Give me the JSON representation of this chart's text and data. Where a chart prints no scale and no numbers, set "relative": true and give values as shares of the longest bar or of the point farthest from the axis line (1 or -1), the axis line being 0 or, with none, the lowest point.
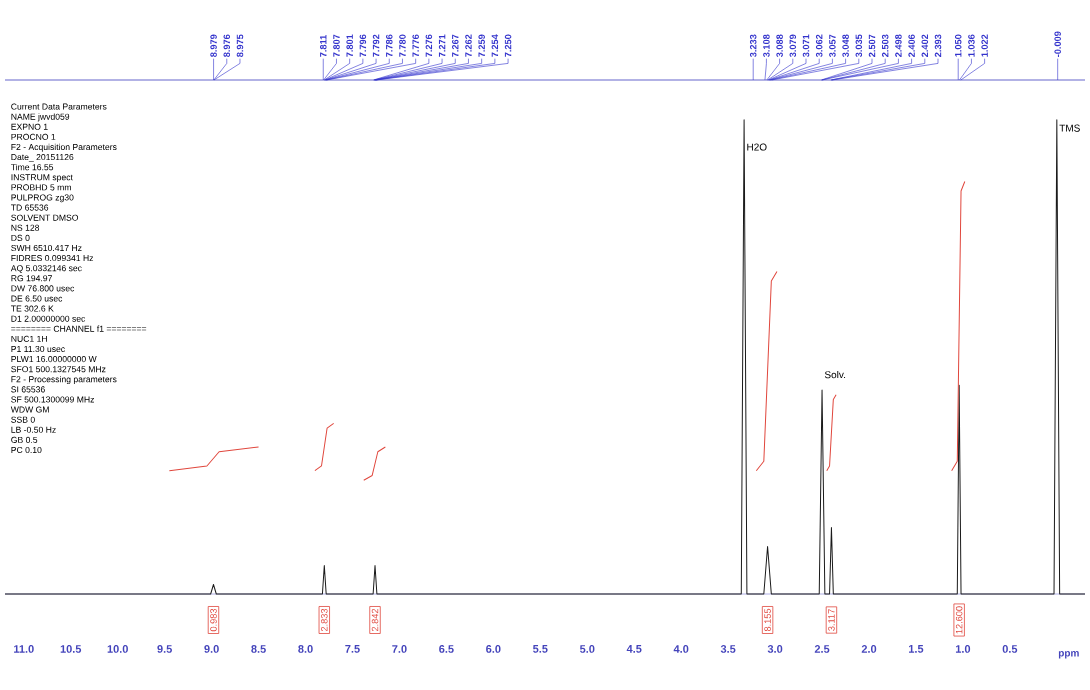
{
  "chart_data": {
    "type": "line",
    "relative": true,
    "xlabel": "ppm",
    "xlim": [
      11.2,
      -0.3
    ],
    "xticks": [
      {
        "value": 11,
        "label": "11.0"
      },
      {
        "value": 10.5,
        "label": "10.5"
      },
      {
        "value": 10,
        "label": "10.0"
      },
      {
        "value": 9.5,
        "label": "9.5"
      },
      {
        "value": 9,
        "label": "9.0"
      },
      {
        "value": 8.5,
        "label": "8.5"
      },
      {
        "value": 8,
        "label": "8.0"
      },
      {
        "value": 7.5,
        "label": "7.5"
      },
      {
        "value": 7,
        "label": "7.0"
      },
      {
        "value": 6.5,
        "label": "6.5"
      },
      {
        "value": 6,
        "label": "6.0"
      },
      {
        "value": 5.5,
        "label": "5.5"
      },
      {
        "value": 5,
        "label": "5.0"
      },
      {
        "value": 4.5,
        "label": "4.5"
      },
      {
        "value": 4,
        "label": "4.0"
      },
      {
        "value": 3.5,
        "label": "3.5"
      },
      {
        "value": 3,
        "label": "3.0"
      },
      {
        "value": 2.5,
        "label": "2.5"
      },
      {
        "value": 2,
        "label": "2.0"
      },
      {
        "value": 1.5,
        "label": "1.5"
      },
      {
        "value": 1,
        "label": "1.0"
      },
      {
        "value": 0.5,
        "label": "0.5"
      }
    ],
    "series": [
      {
        "color": "#1a1a1a",
        "x": [
          11.2,
          9.01,
          8.98,
          8.95,
          7.82,
          7.8,
          7.78,
          7.28,
          7.26,
          7.24,
          3.36,
          3.33,
          3.3,
          3.12,
          3.08,
          3.04,
          2.53,
          2.5,
          2.47,
          2.42,
          2.4,
          2.38,
          1.06,
          1.04,
          1.02,
          0.03,
          0,
          -0.03,
          -0.3
        ],
        "values": [
          0,
          0,
          0.02,
          0,
          0,
          0.06,
          0,
          0,
          0.06,
          0,
          0,
          1,
          0,
          0,
          0.1,
          0,
          0,
          0.43,
          0,
          0,
          0.14,
          0,
          0,
          0.44,
          0,
          0,
          1,
          0,
          0
        ]
      },
      {
        "color": "#e0463c",
        "x": [
          9.45,
          9.05,
          8.92,
          8.5
        ],
        "values": [
          0.26,
          0.27,
          0.3,
          0.31
        ]
      },
      {
        "color": "#e0463c",
        "x": [
          7.9,
          7.83,
          7.77,
          7.7
        ],
        "values": [
          0.26,
          0.27,
          0.35,
          0.36
        ]
      },
      {
        "color": "#e0463c",
        "x": [
          7.38,
          7.29,
          7.23,
          7.15
        ],
        "values": [
          0.24,
          0.25,
          0.3,
          0.31
        ]
      },
      {
        "color": "#e0463c",
        "x": [
          3.2,
          3.12,
          3.04,
          2.98
        ],
        "values": [
          0.26,
          0.28,
          0.66,
          0.68
        ]
      },
      {
        "color": "#e0463c",
        "x": [
          2.45,
          2.42,
          2.38,
          2.35
        ],
        "values": [
          0.26,
          0.27,
          0.41,
          0.42
        ]
      },
      {
        "color": "#e0463c",
        "x": [
          1.12,
          1.06,
          1.02,
          0.98
        ],
        "values": [
          0.26,
          0.28,
          0.85,
          0.87
        ]
      }
    ],
    "annotations": [
      "Current Data Parameters",
      "NAME      jwvd059",
      "EXPNO           1",
      "PROCNO          1",
      "F2 - Acquisition Parameters",
      "Date_      20151126",
      "Time           16.55",
      "INSTRUM        spect",
      "PROBHD   5 mm",
      "PULPROG          zg30",
      "TD           65536",
      "SOLVENT         DMSO",
      "NS             128",
      "DS               0",
      "SWH       6510.417 Hz",
      "FIDRES    0.099341 Hz",
      "AQ     5.0332146 sec",
      "RG           194.97",
      "DW        76.800 usec",
      "DE          6.50 usec",
      "TE           302.6 K",
      "D1    2.00000000 sec",
      "======== CHANNEL f1 ========",
      "NUC1             1H",
      "P1         11.30 usec",
      "PLW1   16.00000000 W",
      "SFO1   500.1327545 MHz",
      "F2 - Processing parameters",
      "SI           65536",
      "SF     500.1300099 MHz",
      "WDW              GM",
      "SSB     0",
      "LB         -0.50 Hz",
      "GB             0.5",
      "PC            0.10",
      {
        "text": "8.979",
        "x": 8.979
      },
      {
        "text": "8.976",
        "x": 8.976
      },
      {
        "text": "8.975",
        "x": 8.975
      },
      {
        "text": "7.811",
        "x": 7.811
      },
      {
        "text": "7.807",
        "x": 7.807
      },
      {
        "text": "7.801",
        "x": 7.801
      },
      {
        "text": "7.796",
        "x": 7.796
      },
      {
        "text": "7.792",
        "x": 7.792
      },
      {
        "text": "7.786",
        "x": 7.786
      },
      {
        "text": "7.780",
        "x": 7.78
      },
      {
        "text": "7.776",
        "x": 7.776
      },
      {
        "text": "7.276",
        "x": 7.276
      },
      {
        "text": "7.271",
        "x": 7.271
      },
      {
        "text": "7.267",
        "x": 7.267
      },
      {
        "text": "7.262",
        "x": 7.262
      },
      {
        "text": "7.259",
        "x": 7.259
      },
      {
        "text": "7.254",
        "x": 7.254
      },
      {
        "text": "7.250",
        "x": 7.25
      },
      {
        "text": "3.233",
        "x": 3.233
      },
      {
        "text": "3.108",
        "x": 3.108
      },
      {
        "text": "3.088",
        "x": 3.088
      },
      {
        "text": "3.079",
        "x": 3.079
      },
      {
        "text": "3.071",
        "x": 3.071
      },
      {
        "text": "3.062",
        "x": 3.062
      },
      {
        "text": "3.057",
        "x": 3.057
      },
      {
        "text": "3.048",
        "x": 3.048
      },
      {
        "text": "3.035",
        "x": 3.035
      },
      {
        "text": "2.507",
        "x": 2.507
      },
      {
        "text": "2.503",
        "x": 2.503
      },
      {
        "text": "2.498",
        "x": 2.498
      },
      {
        "text": "2.406",
        "x": 2.406
      },
      {
        "text": "2.402",
        "x": 2.402
      },
      {
        "text": "2.393",
        "x": 2.393
      },
      {
        "text": "1.050",
        "x": 1.05
      },
      {
        "text": "1.036",
        "x": 1.036
      },
      {
        "text": "1.022",
        "x": 1.022
      },
      {
        "text": "-0.009",
        "x": -0.009
      },
      {
        "text": "H2O",
        "x": 3.33,
        "y": 0.93
      },
      {
        "text": "Solv.",
        "x": 2.5,
        "y": 0.45
      },
      {
        "text": "TMS",
        "x": 0,
        "y": 0.97
      },
      {
        "text": "0.983",
        "x": 8.98,
        "y": 0
      },
      {
        "text": "2.833",
        "x": 7.8,
        "y": 0
      },
      {
        "text": "2.842",
        "x": 7.26,
        "y": 0
      },
      {
        "text": "8.155",
        "x": 3.08,
        "y": 0
      },
      {
        "text": "3.117",
        "x": 2.4,
        "y": 0
      },
      {
        "text": "12.600",
        "x": 1.04,
        "y": 0
      }
    ]
  }
}
